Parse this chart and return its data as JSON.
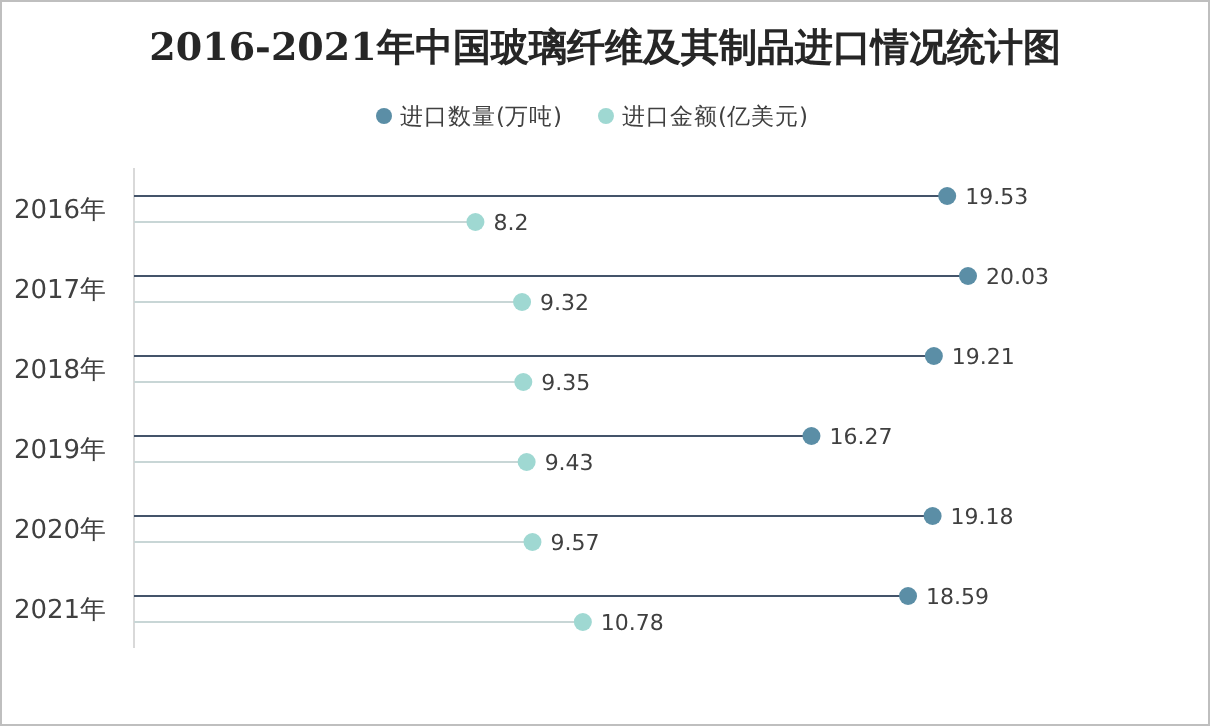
{
  "chart_data": {
    "type": "lollipop",
    "orientation": "horizontal",
    "title": "2016-2021年中国玻璃纤维及其制品进口情况统计图",
    "categories": [
      "2016年",
      "2017年",
      "2018年",
      "2019年",
      "2020年",
      "2021年"
    ],
    "series": [
      {
        "name": "进口数量(万吨)",
        "color": "#5b8ea6",
        "values": [
          19.53,
          20.03,
          19.21,
          16.27,
          19.18,
          18.59
        ]
      },
      {
        "name": "进口金额(亿美元)",
        "color": "#9fd8d2",
        "values": [
          8.2,
          9.32,
          9.35,
          9.43,
          9.57,
          10.78
        ]
      }
    ],
    "data_labels": true,
    "legend": "top"
  }
}
